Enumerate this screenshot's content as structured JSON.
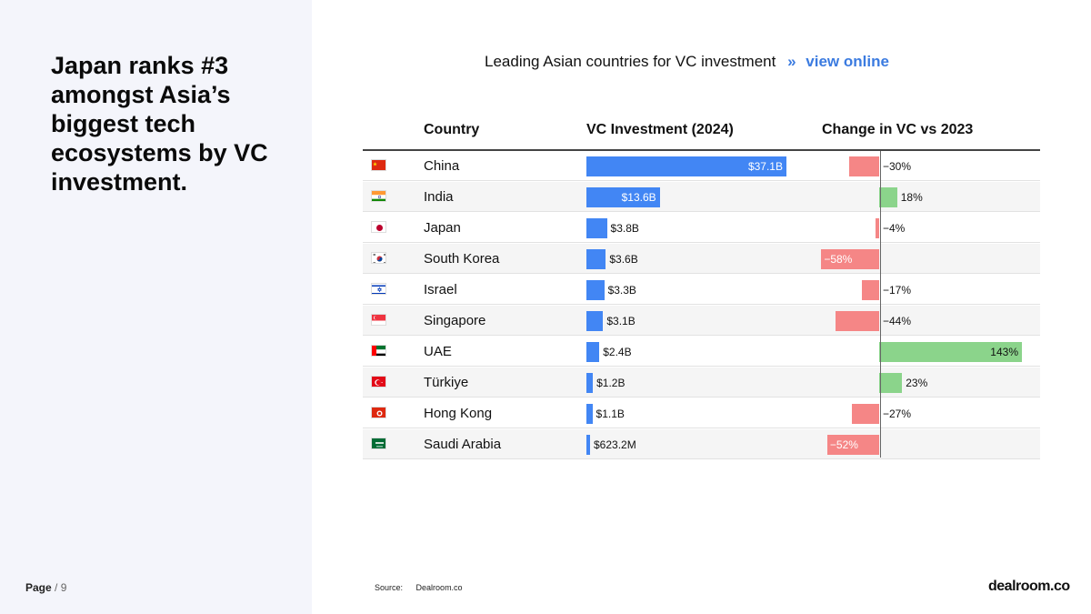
{
  "headline": "Japan ranks #3 amongst Asia’s biggest tech ecosystems by VC investment.",
  "page": {
    "label": "Page",
    "number": "/ 9"
  },
  "chart_title": "Leading Asian countries for VC investment",
  "chart_link_sep": "»",
  "chart_link": "view online",
  "source": {
    "label": "Source:",
    "value": "Dealroom.co"
  },
  "logo": "dealroom.co",
  "colors": {
    "vc_bar": "#4286f4",
    "negative": "#f58686",
    "positive": "#8bd48b",
    "link": "#3b7be0"
  },
  "chart_data": {
    "type": "table",
    "columns": [
      "Country",
      "VC Investment (2024)",
      "Change in VC vs 2023"
    ],
    "rows": [
      {
        "country": "China",
        "flag": "china-flag-icon",
        "vc_billion": 37.1,
        "vc_label": "$37.1B",
        "change": -30,
        "change_label": "−30%"
      },
      {
        "country": "India",
        "flag": "india-flag-icon",
        "vc_billion": 13.6,
        "vc_label": "$13.6B",
        "change": 18,
        "change_label": "18%"
      },
      {
        "country": "Japan",
        "flag": "japan-flag-icon",
        "vc_billion": 3.8,
        "vc_label": "$3.8B",
        "change": -4,
        "change_label": "−4%"
      },
      {
        "country": "South Korea",
        "flag": "south-korea-flag-icon",
        "vc_billion": 3.6,
        "vc_label": "$3.6B",
        "change": -58,
        "change_label": "−58%"
      },
      {
        "country": "Israel",
        "flag": "israel-flag-icon",
        "vc_billion": 3.3,
        "vc_label": "$3.3B",
        "change": -17,
        "change_label": "−17%"
      },
      {
        "country": "Singapore",
        "flag": "singapore-flag-icon",
        "vc_billion": 3.1,
        "vc_label": "$3.1B",
        "change": -44,
        "change_label": "−44%"
      },
      {
        "country": "UAE",
        "flag": "uae-flag-icon",
        "vc_billion": 2.4,
        "vc_label": "$2.4B",
        "change": 143,
        "change_label": "143%"
      },
      {
        "country": "Türkiye",
        "flag": "turkiye-flag-icon",
        "vc_billion": 1.2,
        "vc_label": "$1.2B",
        "change": 23,
        "change_label": "23%"
      },
      {
        "country": "Hong Kong",
        "flag": "hong-kong-flag-icon",
        "vc_billion": 1.1,
        "vc_label": "$1.1B",
        "change": -27,
        "change_label": "−27%"
      },
      {
        "country": "Saudi Arabia",
        "flag": "saudi-arabia-flag-icon",
        "vc_billion": 0.6232,
        "vc_label": "$623.2M",
        "change": -52,
        "change_label": "−52%"
      }
    ]
  }
}
